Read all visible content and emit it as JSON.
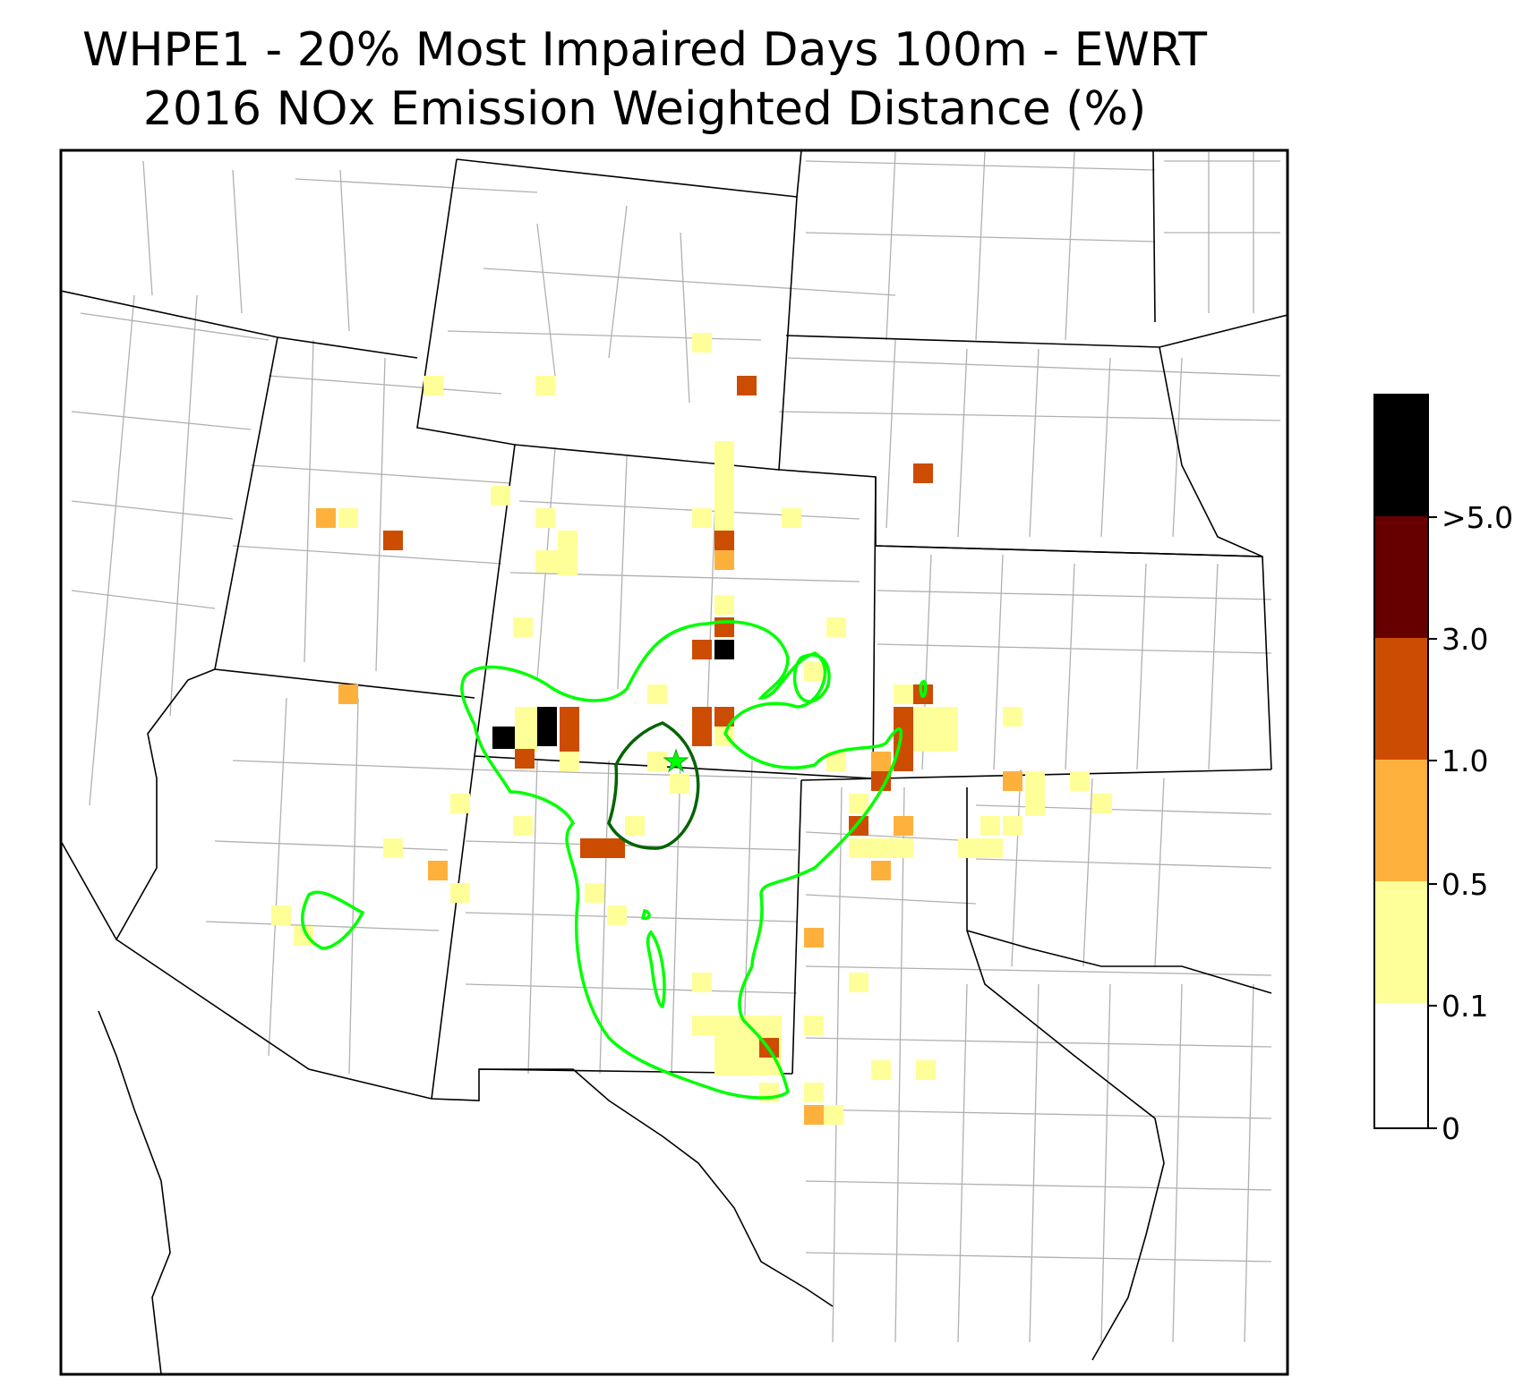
{
  "title": {
    "line1": "WHPE1 - 20% Most Impaired Days 100m - EWRT",
    "line2": "2016 NOx Emission Weighted Distance (%)"
  },
  "legend": {
    "ticks": [
      "0",
      "0.1",
      "0.5",
      "1.0",
      "3.0",
      ">5.0"
    ],
    "bins": [
      {
        "range": "0-0.1",
        "color": "#ffffff"
      },
      {
        "range": "0.1-0.5",
        "color": "#ffff99"
      },
      {
        "range": "0.5-1.0",
        "color": "#fdb13c"
      },
      {
        "range": "1.0-3.0",
        "color": "#cc4c02"
      },
      {
        "range": "3.0-5.0",
        "color": "#660000"
      },
      {
        "range": ">5.0",
        "color": "#000000"
      }
    ]
  },
  "colors": {
    "state_border": "#000000",
    "county_border": "#aaaaaa",
    "contour_outer": "#00ff00",
    "contour_inner": "#006400",
    "site_marker": "#00ff00"
  },
  "site": {
    "name": "WHPE1",
    "marker": "star-icon"
  }
}
